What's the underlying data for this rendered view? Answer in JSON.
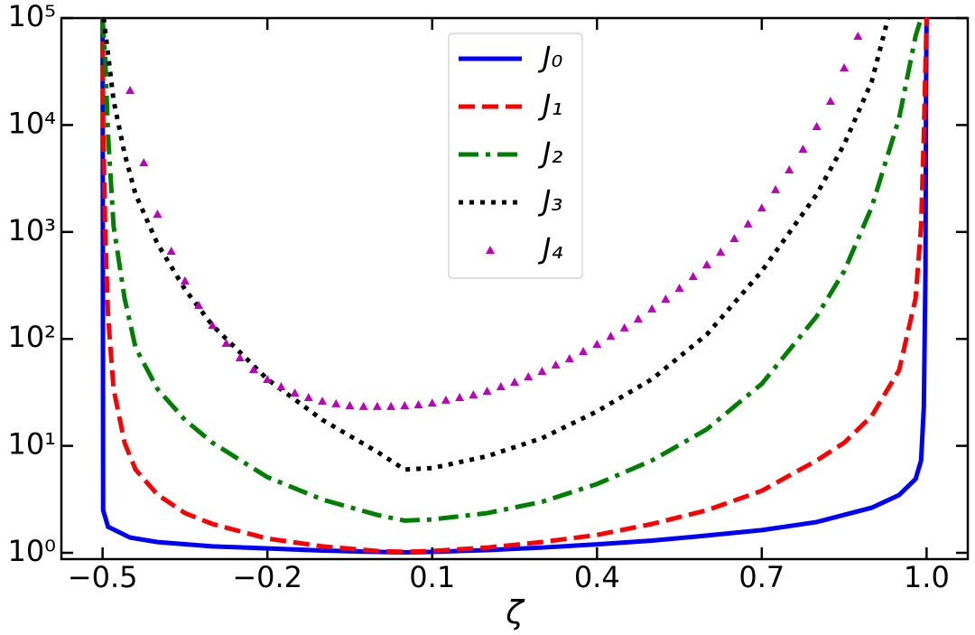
{
  "chart_data": {
    "type": "line",
    "xlabel": "ζ",
    "yscale": "log",
    "xlim": [
      -0.575,
      1.075
    ],
    "ylim": [
      0.873,
      100000
    ],
    "xticks": [
      {
        "value": -0.5,
        "label": "−0.5"
      },
      {
        "value": -0.2,
        "label": "−0.2"
      },
      {
        "value": 0.1,
        "label": "0.1"
      },
      {
        "value": 0.4,
        "label": "0.4"
      },
      {
        "value": 0.7,
        "label": "0.7"
      },
      {
        "value": 1.0,
        "label": "1.0"
      }
    ],
    "yticks": [
      {
        "value": 1,
        "label": "10⁰"
      },
      {
        "value": 10,
        "label": "10¹"
      },
      {
        "value": 100,
        "label": "10²"
      },
      {
        "value": 1000,
        "label": "10³"
      },
      {
        "value": 10000,
        "label": "10⁴"
      },
      {
        "value": 100000,
        "label": "10⁵"
      }
    ],
    "legend": "upper center",
    "series": [
      {
        "name": "J₀",
        "color": "#0000ff",
        "style": "solid",
        "x": [
          -0.5,
          -0.499,
          -0.49,
          -0.45,
          -0.4,
          -0.3,
          -0.2,
          -0.1,
          0,
          0.05,
          0.1,
          0.2,
          0.3,
          0.4,
          0.5,
          0.6,
          0.7,
          0.8,
          0.9,
          0.95,
          0.98,
          0.99,
          0.995,
          0.998,
          0.999,
          1.0
        ],
        "values": [
          100000,
          2.5,
          1.75,
          1.39,
          1.26,
          1.15,
          1.1,
          1.05,
          1.02,
          1.01,
          1.02,
          1.06,
          1.12,
          1.2,
          1.3,
          1.45,
          1.63,
          1.94,
          2.64,
          3.47,
          4.9,
          7.3,
          23,
          430,
          20000,
          100000
        ]
      },
      {
        "name": "J₁",
        "color": "#ff0000",
        "style": "dashed",
        "x": [
          -0.5,
          -0.499,
          -0.495,
          -0.49,
          -0.48,
          -0.46,
          -0.44,
          -0.4,
          -0.35,
          -0.3,
          -0.2,
          -0.1,
          0,
          0.05,
          0.1,
          0.2,
          0.3,
          0.4,
          0.5,
          0.6,
          0.7,
          0.8,
          0.85,
          0.9,
          0.95,
          0.98,
          0.99,
          0.995,
          1.0
        ],
        "values": [
          100000,
          10000,
          900,
          163,
          34,
          10.7,
          6,
          3.5,
          2.35,
          1.86,
          1.36,
          1.15,
          1.04,
          1.02,
          1.04,
          1.12,
          1.26,
          1.47,
          1.86,
          2.5,
          3.8,
          7.3,
          10.7,
          19,
          51,
          240,
          1140,
          8000,
          100000
        ]
      },
      {
        "name": "J₂",
        "color": "#008000",
        "style": "dashdot",
        "x": [
          -0.5,
          -0.495,
          -0.49,
          -0.48,
          -0.46,
          -0.44,
          -0.4,
          -0.35,
          -0.3,
          -0.2,
          -0.1,
          0,
          0.05,
          0.1,
          0.2,
          0.3,
          0.4,
          0.5,
          0.6,
          0.7,
          0.8,
          0.85,
          0.9,
          0.95,
          0.98,
          0.99
        ],
        "values": [
          100000,
          40000,
          8000,
          1140,
          240,
          83,
          34,
          17.5,
          10.7,
          5.1,
          3.15,
          2.26,
          2.0,
          2.05,
          2.35,
          3.0,
          4.4,
          7.3,
          14.3,
          38,
          163,
          430,
          1700,
          11600,
          68000,
          100000
        ]
      },
      {
        "name": "J₃",
        "color": "#000000",
        "style": "dotted",
        "x": [
          -0.498,
          -0.48,
          -0.46,
          -0.44,
          -0.4,
          -0.35,
          -0.3,
          -0.2,
          -0.1,
          0,
          0.05,
          0.1,
          0.2,
          0.3,
          0.4,
          0.5,
          0.6,
          0.7,
          0.8,
          0.85,
          0.9,
          0.93
        ],
        "values": [
          100000,
          17000,
          5400,
          2250,
          775,
          290,
          134,
          42,
          17.5,
          8.8,
          6,
          6.2,
          8,
          11.8,
          21,
          42,
          110,
          430,
          2250,
          6600,
          25400,
          100000
        ]
      },
      {
        "name": "J₄",
        "color": "#bf00bf",
        "style": "triangle",
        "x": [
          -0.45,
          -0.425,
          -0.4,
          -0.375,
          -0.35,
          -0.325,
          -0.3,
          -0.275,
          -0.25,
          -0.225,
          -0.2,
          -0.175,
          -0.15,
          -0.125,
          -0.1,
          -0.075,
          -0.05,
          -0.025,
          0,
          0.025,
          0.05,
          0.075,
          0.1,
          0.125,
          0.15,
          0.175,
          0.2,
          0.225,
          0.25,
          0.275,
          0.3,
          0.325,
          0.35,
          0.375,
          0.4,
          0.425,
          0.45,
          0.475,
          0.5,
          0.525,
          0.55,
          0.575,
          0.6,
          0.625,
          0.65,
          0.675,
          0.7,
          0.725,
          0.75,
          0.775,
          0.8,
          0.825,
          0.85,
          0.875
        ],
        "values": [
          21100,
          4450,
          1470,
          662,
          349,
          206,
          134,
          91,
          66.7,
          51.8,
          41.9,
          35.8,
          31.3,
          28.4,
          26.2,
          24.8,
          23.8,
          23.4,
          23.4,
          23.4,
          23.8,
          24.3,
          25.2,
          26.8,
          28.4,
          30.1,
          32.5,
          35.8,
          39.5,
          44.4,
          49.9,
          57.1,
          65.5,
          76.4,
          89.3,
          106,
          127,
          154,
          191,
          236,
          298,
          384,
          495,
          650,
          869,
          1190,
          1680,
          2490,
          3810,
          5960,
          9690,
          16700,
          34300,
          67800
        ]
      }
    ]
  }
}
